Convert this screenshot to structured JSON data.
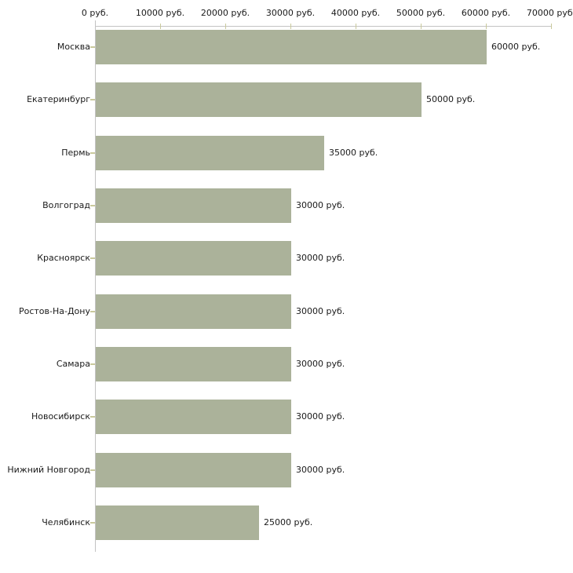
{
  "chart_data": {
    "type": "bar",
    "orientation": "horizontal",
    "unit": "руб.",
    "categories": [
      "Москва",
      "Екатеринбург",
      "Пермь",
      "Волгоград",
      "Красноярск",
      "Ростов-На-Дону",
      "Самара",
      "Новосибирск",
      "Нижний Новгород",
      "Челябинск"
    ],
    "values": [
      60000,
      50000,
      35000,
      30000,
      30000,
      30000,
      30000,
      30000,
      30000,
      25000
    ],
    "value_labels": [
      "60000 руб.",
      "50000 руб.",
      "35000 руб.",
      "30000 руб.",
      "30000 руб.",
      "30000 руб.",
      "30000 руб.",
      "30000 руб.",
      "30000 руб.",
      "25000 руб."
    ],
    "x_axis": {
      "position": "top",
      "range": [
        0,
        70000
      ],
      "ticks": [
        0,
        10000,
        20000,
        30000,
        40000,
        50000,
        60000,
        70000
      ],
      "tick_labels": [
        "0 руб.",
        "10000 руб.",
        "20000 руб.",
        "30000 руб.",
        "40000 руб.",
        "50000 руб.",
        "60000 руб.",
        "70000 руб."
      ]
    },
    "grid": "off",
    "legend": "none",
    "colors": {
      "bar": "#abb29a",
      "axis_line": "#c3c3c3",
      "tick": "#c9c99c",
      "text": "#1a1a1a",
      "background": "#ffffff"
    }
  }
}
